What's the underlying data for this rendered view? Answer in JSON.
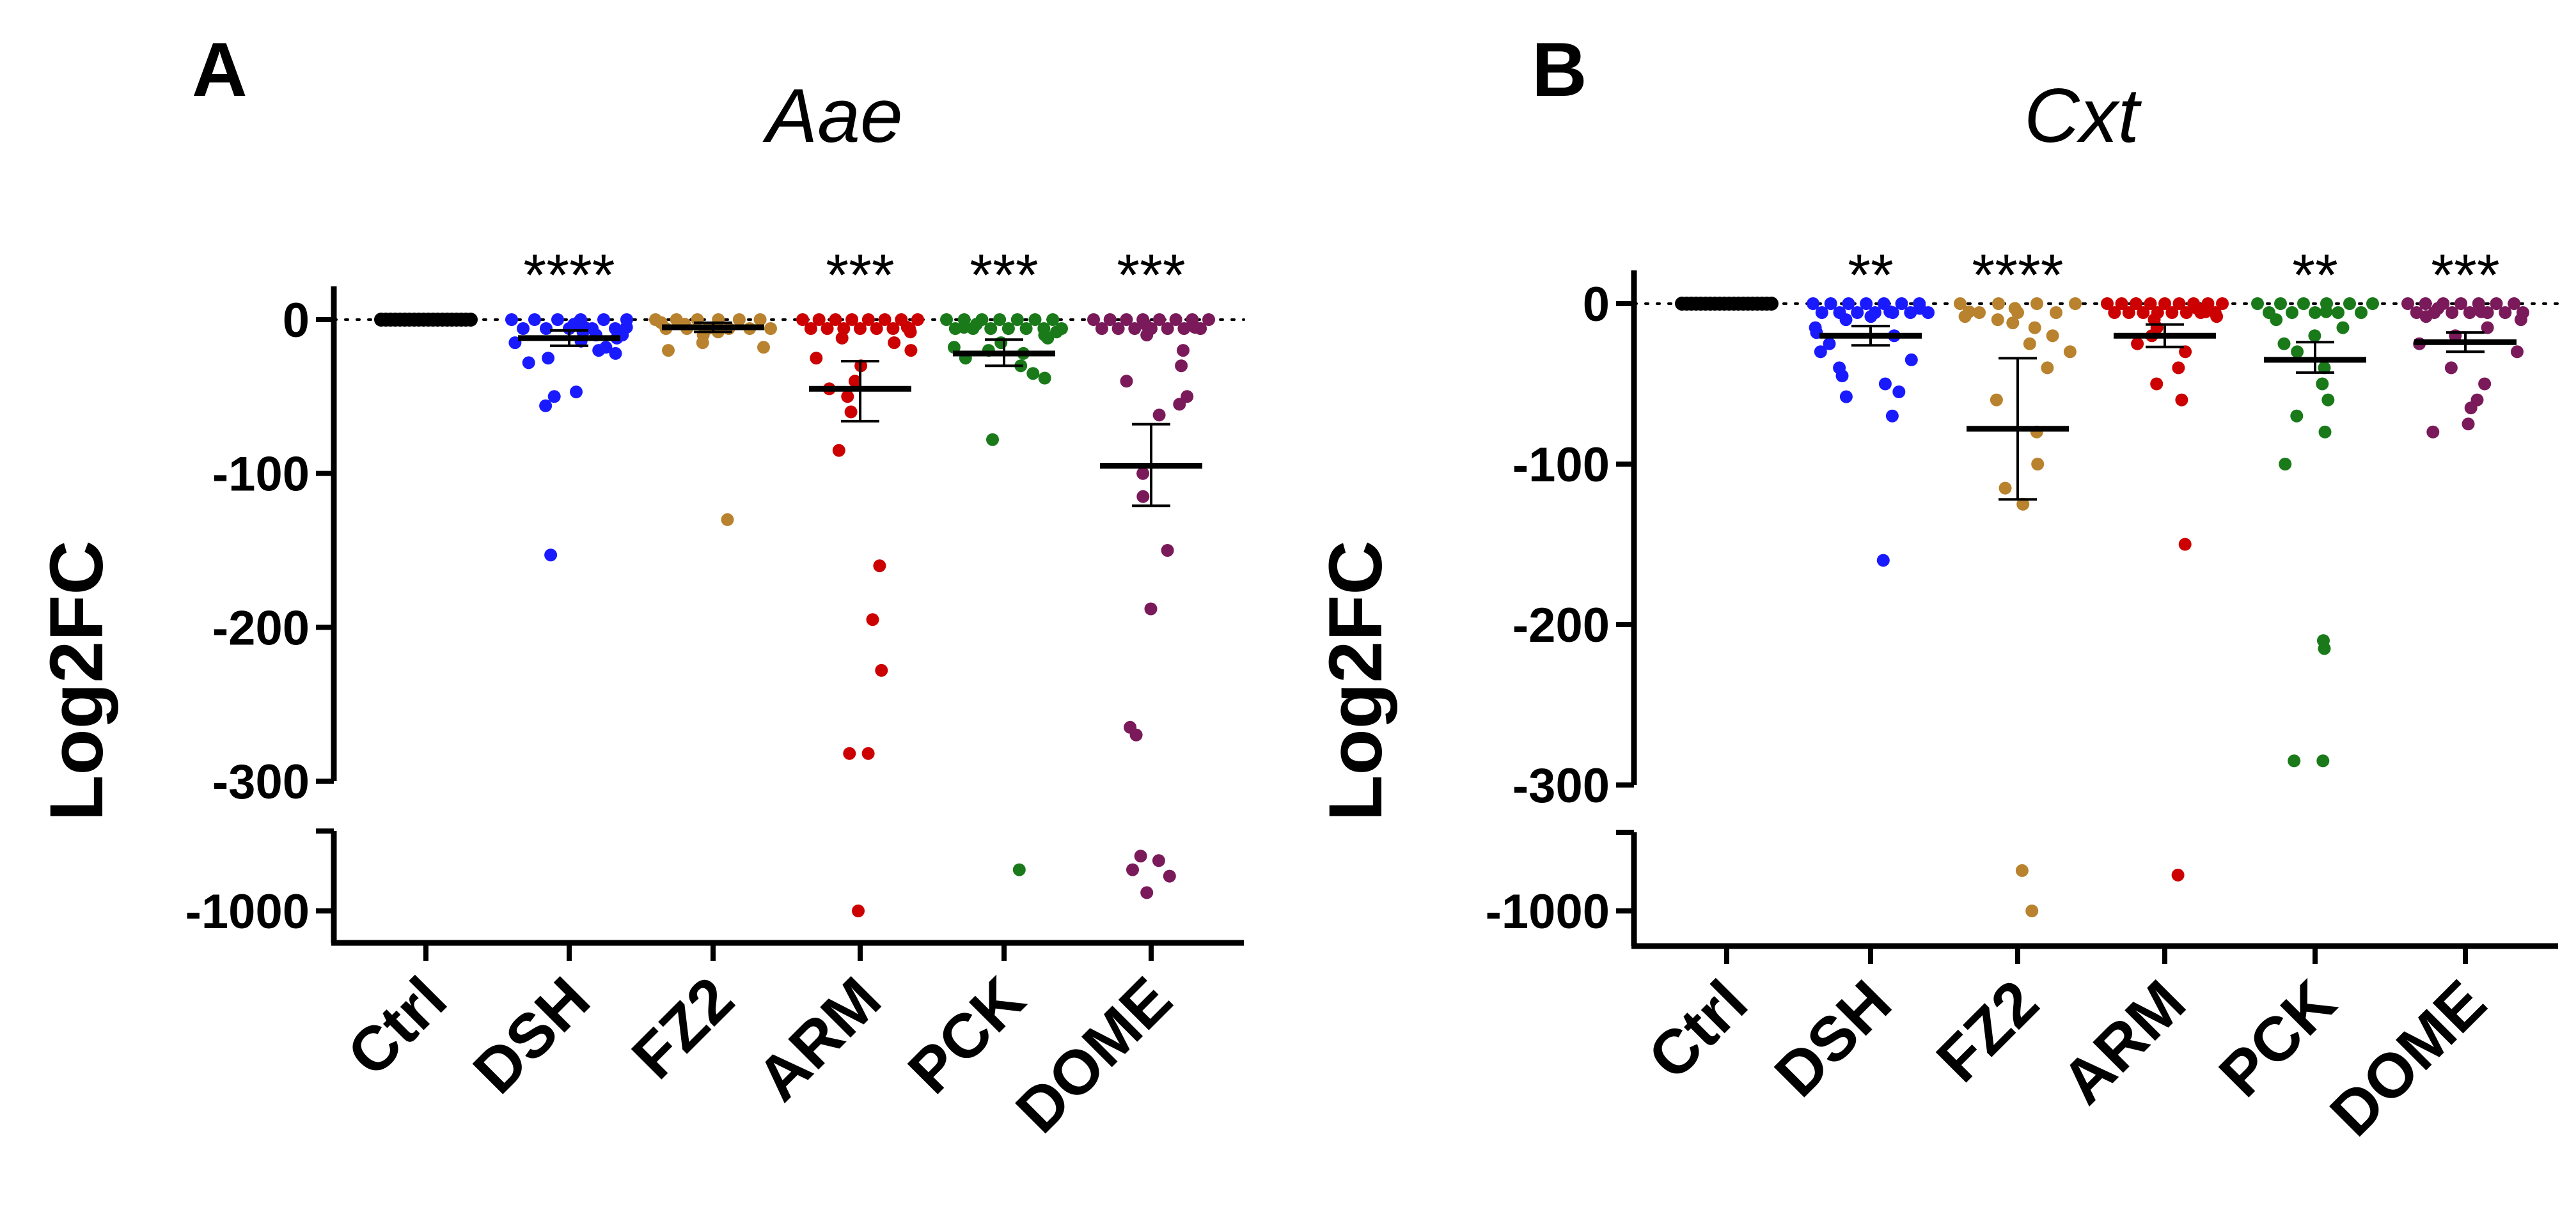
{
  "chart_data": [
    {
      "type": "scatter",
      "panel": "A",
      "title": "Aae",
      "ylabel": "Log2FC",
      "xlabel": "",
      "categories": [
        "Ctrl",
        "DSH",
        "FZ2",
        "ARM",
        "PCK",
        "DOME"
      ],
      "yticks": [
        "0",
        "-100",
        "-200",
        "-300",
        "-1000"
      ],
      "ylim_upper": [
        -300,
        0
      ],
      "ylim_lower": [
        -1000
      ],
      "reference_line": "dotted at 0",
      "colors": [
        "#000000",
        "#1a1aff",
        "#b8822e",
        "#cc0000",
        "#1a7a1a",
        "#7a1a5a"
      ],
      "significance": [
        "",
        "****",
        "",
        "***",
        "***",
        "***"
      ],
      "mean": [
        0,
        -12,
        -5,
        -45,
        -22,
        -95
      ],
      "sem_low": [
        0,
        -17,
        -8,
        -66,
        -30,
        -121
      ],
      "sem_high": [
        0,
        -7,
        -2,
        -27,
        -13,
        -68
      ],
      "points": [
        [
          0,
          0,
          0,
          0,
          0,
          0,
          0,
          0,
          0,
          0,
          0,
          0,
          0,
          0,
          0,
          0,
          0,
          0,
          0,
          0
        ],
        [
          0,
          0,
          0,
          0,
          0,
          0,
          0,
          0,
          0,
          0,
          0,
          -2,
          -3,
          -5,
          -8,
          -10,
          -12,
          -15,
          -18,
          -22,
          -25,
          -28,
          -5,
          -3,
          -10,
          -14,
          -20,
          -47,
          -50,
          -56,
          -153
        ],
        [
          0,
          0,
          0,
          0,
          0,
          0,
          0,
          0,
          0,
          0,
          0,
          0,
          -2,
          -3,
          -5,
          -8,
          -10,
          -15,
          -18,
          -20,
          -130
        ],
        [
          0,
          0,
          0,
          0,
          0,
          0,
          0,
          0,
          0,
          0,
          0,
          0,
          0,
          0,
          0,
          -5,
          -8,
          -12,
          -15,
          -20,
          -25,
          -30,
          -40,
          -45,
          -50,
          -60,
          -85,
          -160,
          -195,
          -228,
          -282,
          -282,
          -1000
        ],
        [
          0,
          0,
          0,
          0,
          0,
          0,
          0,
          0,
          0,
          0,
          0,
          0,
          0,
          0,
          -3,
          -5,
          -8,
          -10,
          -12,
          -15,
          -18,
          -20,
          -22,
          -25,
          -30,
          -35,
          -38,
          -78,
          -550
        ],
        [
          0,
          0,
          0,
          0,
          0,
          0,
          0,
          0,
          0,
          0,
          0,
          0,
          0,
          0,
          0,
          -3,
          -5,
          -10,
          -20,
          -30,
          -40,
          -50,
          -55,
          -62,
          -100,
          -115,
          -150,
          -188,
          -265,
          -270,
          -400,
          -450,
          -550,
          -620,
          -800
        ]
      ]
    },
    {
      "type": "scatter",
      "panel": "B",
      "title": "Cxt",
      "ylabel": "Log2FC",
      "xlabel": "",
      "categories": [
        "Ctrl",
        "DSH",
        "FZ2",
        "ARM",
        "PCK",
        "DOME"
      ],
      "yticks": [
        "0",
        "-100",
        "-200",
        "-300",
        "-1000"
      ],
      "ylim_upper": [
        -300,
        0
      ],
      "ylim_lower": [
        -1000
      ],
      "reference_line": "dotted at 0",
      "colors": [
        "#000000",
        "#1a1aff",
        "#b8822e",
        "#cc0000",
        "#1a7a1a",
        "#7a1a5a"
      ],
      "significance": [
        "",
        "**",
        "****",
        "",
        "**",
        "***"
      ],
      "mean": [
        0,
        -20,
        -78,
        -20,
        -35,
        -24
      ],
      "sem_low": [
        0,
        -26,
        -122,
        -27,
        -43,
        -30
      ],
      "sem_high": [
        0,
        -14,
        -34,
        -13,
        -24,
        -18
      ],
      "points": [
        [
          0,
          0,
          0,
          0,
          0,
          0,
          0,
          0,
          0,
          0,
          0,
          0,
          0,
          0,
          0,
          0,
          0,
          0,
          0,
          0
        ],
        [
          0,
          0,
          0,
          0,
          0,
          0,
          0,
          0,
          0,
          0,
          0,
          0,
          0,
          0,
          -3,
          -5,
          -8,
          -10,
          -15,
          -18,
          -20,
          -25,
          -30,
          -35,
          -40,
          -45,
          -50,
          -55,
          -58,
          -70,
          -160
        ],
        [
          0,
          0,
          0,
          0,
          0,
          0,
          0,
          -3,
          -5,
          -8,
          -10,
          -12,
          -15,
          -20,
          -25,
          -30,
          -40,
          -60,
          -80,
          -100,
          -115,
          -125,
          -550,
          -1000
        ],
        [
          0,
          0,
          0,
          0,
          0,
          0,
          0,
          0,
          0,
          0,
          0,
          0,
          0,
          0,
          0,
          0,
          0,
          -3,
          -5,
          -8,
          -10,
          -15,
          -20,
          -25,
          -30,
          -40,
          -50,
          -60,
          -150,
          -600
        ],
        [
          0,
          0,
          0,
          0,
          0,
          0,
          0,
          0,
          0,
          0,
          0,
          -5,
          -10,
          -15,
          -20,
          -25,
          -30,
          -40,
          -50,
          -60,
          -70,
          -80,
          -100,
          -210,
          -215,
          -285,
          -285
        ],
        [
          0,
          0,
          0,
          0,
          0,
          0,
          0,
          0,
          0,
          0,
          0,
          0,
          0,
          0,
          -3,
          -5,
          -8,
          -10,
          -15,
          -20,
          -25,
          -30,
          -40,
          -50,
          -60,
          -65,
          -75,
          -80
        ]
      ]
    }
  ]
}
